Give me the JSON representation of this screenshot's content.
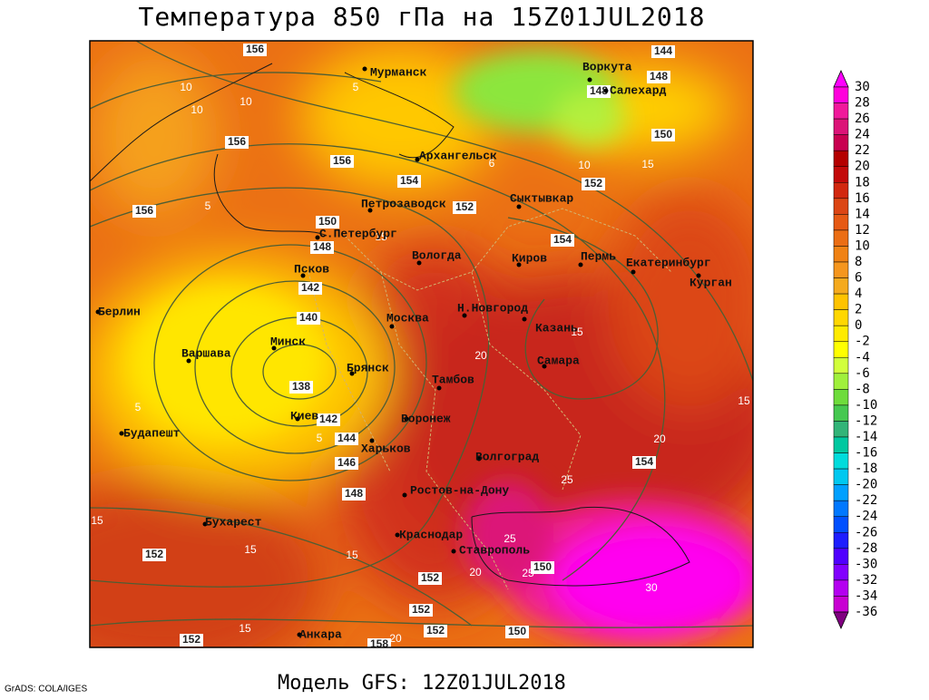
{
  "title": "Температура 850 гПа на 15Z01JUL2018",
  "footer": "Модель GFS: 12Z01JUL2018",
  "credit": "GrADS: COLA/IGES",
  "cities": [
    "Мурманск",
    "Воркута",
    "Салехард",
    "Архангельск",
    "Петрозаводск",
    "Сыктывкар",
    "С.Петербург",
    "Вологда",
    "Киров",
    "Пермь",
    "Екатеринбург",
    "Курган",
    "Псков",
    "Берлин",
    "Н.Новгород",
    "Казань",
    "Москва",
    "Минск",
    "Варшава",
    "Самара",
    "Брянск",
    "Тамбов",
    "Воронеж",
    "Киев",
    "Будапешт",
    "Харьков",
    "Волгоград",
    "Ростов-на-Дону",
    "Бухарест",
    "Краснодар",
    "Ставрополь",
    "Анкара"
  ],
  "height_labels": [
    156,
    144,
    148,
    148,
    150,
    152,
    156,
    156,
    154,
    152,
    156,
    150,
    148,
    142,
    140,
    138,
    142,
    144,
    146,
    148,
    154,
    154,
    152,
    152,
    150,
    152,
    152,
    150,
    152,
    158
  ],
  "temperature_labels": [
    10,
    10,
    5,
    10,
    6,
    10,
    15,
    5,
    15,
    20,
    15,
    15,
    20,
    25,
    25,
    20,
    25,
    30,
    15,
    15,
    20,
    5,
    5,
    15,
    15
  ],
  "colorbar": {
    "labels": [
      30,
      28,
      26,
      24,
      22,
      20,
      18,
      16,
      14,
      12,
      10,
      8,
      6,
      4,
      2,
      0,
      -2,
      -4,
      -6,
      -8,
      -10,
      -12,
      -14,
      -16,
      -18,
      -20,
      -22,
      -24,
      -26,
      -28,
      -30,
      -32,
      -34,
      -36
    ],
    "colors": [
      "#ff00ff",
      "#ff00dc",
      "#f0199b",
      "#dc1478",
      "#c80050",
      "#b40000",
      "#c30a0a",
      "#d2280f",
      "#dc4614",
      "#e65a14",
      "#eb6e14",
      "#f08214",
      "#f5961e",
      "#f5aa1e",
      "#ffc300",
      "#ffd700",
      "#ffeb00",
      "#ffff00",
      "#d2ff3c",
      "#a0f03c",
      "#6edc3c",
      "#46c850",
      "#32b478",
      "#00c8a0",
      "#00dcdc",
      "#00c8f0",
      "#00a0ff",
      "#0078ff",
      "#0050ff",
      "#1e1eff",
      "#5000ff",
      "#8200ff",
      "#b400f0",
      "#c800d2",
      "#a000a0",
      "#800080"
    ]
  }
}
